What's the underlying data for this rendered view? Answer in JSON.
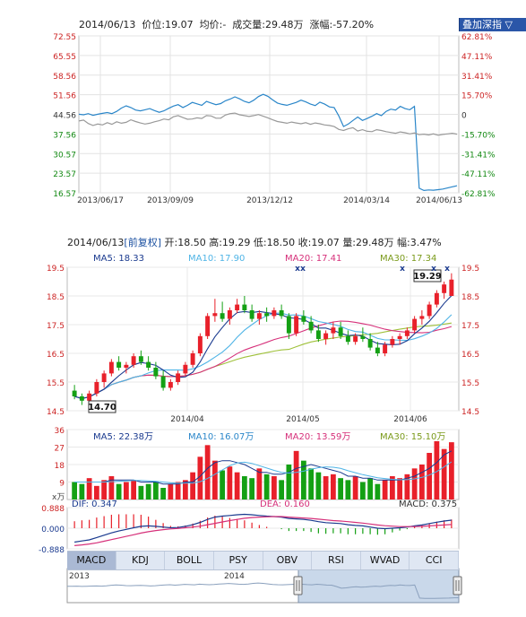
{
  "top_header": {
    "date": "2014/06/13",
    "price": "价位:19.07",
    "avg": "均价:-",
    "volume": "成交量:29.48万",
    "change": "涨幅:-57.20%"
  },
  "overlay_button": "叠加深指 ▽",
  "candle_header": {
    "date": "2014/06/13",
    "tag": "[前复权]",
    "open": "开:18.50",
    "high": "高:19.29",
    "low": "低:18.50",
    "close": "收:19.07",
    "volume": "量:29.48万",
    "amplitude": "幅:3.47%"
  },
  "ma_legend": {
    "ma5": "MA5: 18.33",
    "ma10": "MA10: 17.90",
    "ma20": "MA20: 17.41",
    "ma30": "MA30: 17.34"
  },
  "vol_legend": {
    "ma5": "MA5: 22.38万",
    "ma10": "MA10: 16.07万",
    "ma20": "MA20: 13.59万",
    "ma30": "MA30: 15.10万"
  },
  "macd_legend": {
    "dif": "DIF: 0.347",
    "dea": "DEA: 0.160",
    "macd": "MACD: 0.375"
  },
  "price_labels": {
    "high": "19.29",
    "low": "14.70"
  },
  "vol_unit": "x万",
  "tabs": [
    "MACD",
    "KDJ",
    "BOLL",
    "PSY",
    "OBV",
    "RSI",
    "WVAD",
    "CCI"
  ],
  "active_tab": "MACD",
  "navigator": {
    "label_left": "2013",
    "label_mid": "2014"
  },
  "colors": {
    "up": "#e8202a",
    "down": "#14a014",
    "line1": "#2a86c9",
    "line2": "#999999",
    "ma5": "#1a3a8f",
    "ma10": "#4fb4e6",
    "ma20": "#d6307a",
    "ma30": "#9fc13a",
    "axis_up": "#cc2222",
    "axis_down": "#118811"
  },
  "chart_data": [
    {
      "type": "line",
      "y_left_ticks": [
        "72.55",
        "65.55",
        "58.56",
        "51.56",
        "44.56",
        "37.56",
        "30.57",
        "23.57",
        "16.57"
      ],
      "y_right_ticks": [
        "62.81%",
        "47.11%",
        "31.41%",
        "15.70%",
        "0",
        "-15.70%",
        "-31.41%",
        "-47.11%",
        "-62.81%"
      ],
      "x_ticks": [
        "2013/06/17",
        "2013/09/09",
        "2013/12/12",
        "2014/03/14",
        "2014/06/13"
      ],
      "ylim": [
        16.57,
        72.55
      ],
      "series": [
        {
          "color": "#2a86c9",
          "values": [
            44.6,
            44.4,
            44.8,
            44.2,
            44.6,
            44.9,
            45.2,
            44.8,
            45.6,
            46.8,
            47.6,
            47.0,
            46.1,
            45.8,
            46.2,
            46.6,
            45.9,
            45.3,
            45.8,
            46.7,
            47.5,
            48.0,
            47.0,
            47.8,
            48.8,
            48.3,
            47.8,
            49.2,
            48.6,
            48.0,
            48.4,
            49.4,
            50.0,
            50.8,
            50.1,
            49.2,
            48.7,
            49.6,
            50.9,
            51.7,
            51.0,
            49.7,
            48.6,
            48.1,
            47.8,
            48.3,
            48.8,
            49.6,
            49.0,
            48.2,
            47.7,
            48.9,
            48.2,
            47.2,
            47.0,
            44.0,
            40.2,
            41.1,
            42.4,
            43.6,
            42.4,
            43.1,
            43.9,
            44.8,
            44.1,
            45.6,
            46.4,
            46.1,
            47.4,
            46.6,
            46.2,
            47.4,
            18.2,
            17.4,
            17.6,
            17.5,
            17.7,
            17.9,
            18.3,
            18.7,
            19.1
          ]
        },
        {
          "color": "#999999",
          "values": [
            42.2,
            42.5,
            41.3,
            40.6,
            41.1,
            40.8,
            41.6,
            41.0,
            41.9,
            41.4,
            41.7,
            42.6,
            42.0,
            41.5,
            41.1,
            41.4,
            41.9,
            42.3,
            42.9,
            42.6,
            43.7,
            44.1,
            43.4,
            42.8,
            42.9,
            43.3,
            43.1,
            44.1,
            44.0,
            43.2,
            43.2,
            44.3,
            44.8,
            45.0,
            44.4,
            44.1,
            43.8,
            44.1,
            44.5,
            43.9,
            43.3,
            42.6,
            42.0,
            41.7,
            41.4,
            41.8,
            41.5,
            41.2,
            41.6,
            41.0,
            41.5,
            41.2,
            40.8,
            40.6,
            40.2,
            39.2,
            38.8,
            39.4,
            39.8,
            38.6,
            39.1,
            38.5,
            38.4,
            39.1,
            38.8,
            38.4,
            38.1,
            37.8,
            38.3,
            38.0,
            37.6,
            37.9,
            37.3,
            37.5,
            37.2,
            37.6,
            37.1,
            37.4,
            37.6,
            37.8,
            37.5
          ]
        }
      ]
    },
    {
      "type": "candlestick",
      "y_ticks": [
        "19.5",
        "18.5",
        "17.5",
        "16.5",
        "15.5",
        "14.5"
      ],
      "ylim": [
        14.5,
        19.5
      ],
      "x_ticks": [
        "2014/04",
        "2014/05",
        "2014/06"
      ],
      "ohlc": [
        [
          15.2,
          15.4,
          14.9,
          15.0
        ],
        [
          15.0,
          15.1,
          14.7,
          14.85
        ],
        [
          14.85,
          15.2,
          14.8,
          15.1
        ],
        [
          15.1,
          15.6,
          15.0,
          15.5
        ],
        [
          15.5,
          15.9,
          15.3,
          15.8
        ],
        [
          15.8,
          16.3,
          15.7,
          16.2
        ],
        [
          16.2,
          16.4,
          15.9,
          16.0
        ],
        [
          16.0,
          16.2,
          15.8,
          16.1
        ],
        [
          16.1,
          16.5,
          16.0,
          16.4
        ],
        [
          16.4,
          16.6,
          16.1,
          16.2
        ],
        [
          16.2,
          16.4,
          15.9,
          16.0
        ],
        [
          16.0,
          16.2,
          15.6,
          15.7
        ],
        [
          15.7,
          15.9,
          15.2,
          15.3
        ],
        [
          15.3,
          15.6,
          15.2,
          15.5
        ],
        [
          15.5,
          15.9,
          15.4,
          15.8
        ],
        [
          15.8,
          16.2,
          15.7,
          16.1
        ],
        [
          16.1,
          16.6,
          16.0,
          16.5
        ],
        [
          16.5,
          17.2,
          16.4,
          17.1
        ],
        [
          17.1,
          17.9,
          17.0,
          17.8
        ],
        [
          17.8,
          18.4,
          17.6,
          17.9
        ],
        [
          17.9,
          18.3,
          17.6,
          17.7
        ],
        [
          17.7,
          18.1,
          17.5,
          18.0
        ],
        [
          18.0,
          18.4,
          17.9,
          18.2
        ],
        [
          18.2,
          18.5,
          17.9,
          18.0
        ],
        [
          18.0,
          18.2,
          17.6,
          17.7
        ],
        [
          17.7,
          18.0,
          17.5,
          17.9
        ],
        [
          17.9,
          18.1,
          17.6,
          17.8
        ],
        [
          17.8,
          18.1,
          17.7,
          18.0
        ],
        [
          18.0,
          18.2,
          17.7,
          17.8
        ],
        [
          17.8,
          17.9,
          17.0,
          17.2
        ],
        [
          17.2,
          17.9,
          17.1,
          17.8
        ],
        [
          17.8,
          18.0,
          17.5,
          17.6
        ],
        [
          17.6,
          17.8,
          17.2,
          17.3
        ],
        [
          17.3,
          17.5,
          16.9,
          17.0
        ],
        [
          17.0,
          17.3,
          16.8,
          17.2
        ],
        [
          17.2,
          17.6,
          17.0,
          17.4
        ],
        [
          17.4,
          17.6,
          17.0,
          17.1
        ],
        [
          17.1,
          17.3,
          16.8,
          16.9
        ],
        [
          16.9,
          17.2,
          16.8,
          17.1
        ],
        [
          17.1,
          17.4,
          16.9,
          17.0
        ],
        [
          17.0,
          17.2,
          16.6,
          16.7
        ],
        [
          16.7,
          16.9,
          16.4,
          16.5
        ],
        [
          16.5,
          16.9,
          16.4,
          16.8
        ],
        [
          16.8,
          17.1,
          16.7,
          17.0
        ],
        [
          17.0,
          17.2,
          16.8,
          17.1
        ],
        [
          17.1,
          17.4,
          17.0,
          17.3
        ],
        [
          17.3,
          17.8,
          17.2,
          17.7
        ],
        [
          17.7,
          18.0,
          17.5,
          17.8
        ],
        [
          17.8,
          18.3,
          17.7,
          18.2
        ],
        [
          18.2,
          18.7,
          18.1,
          18.6
        ],
        [
          18.6,
          19.0,
          18.4,
          18.9
        ],
        [
          18.5,
          19.29,
          18.5,
          19.07
        ]
      ]
    },
    {
      "type": "bar",
      "y_ticks": [
        "36",
        "27",
        "18",
        "9"
      ],
      "ylim": [
        0,
        36
      ],
      "values_wan": [
        9,
        8,
        11,
        7,
        10,
        12,
        8,
        9,
        10,
        7,
        8,
        9,
        6,
        8,
        9,
        10,
        14,
        22,
        28,
        20,
        15,
        17,
        14,
        12,
        11,
        16,
        13,
        12,
        10,
        18,
        25,
        20,
        16,
        14,
        12,
        13,
        11,
        10,
        12,
        9,
        11,
        8,
        10,
        12,
        11,
        13,
        16,
        18,
        24,
        30,
        26,
        29.48
      ],
      "ma5": [
        9,
        9,
        9,
        9,
        9,
        10,
        10,
        10,
        10,
        9,
        9,
        9,
        8,
        8,
        8,
        9,
        9,
        12,
        16,
        19,
        20,
        20,
        19,
        18,
        16,
        14,
        14,
        13,
        13,
        14,
        16,
        17,
        18,
        17,
        16,
        15,
        14,
        12,
        12,
        11,
        11,
        10,
        10,
        10,
        10,
        11,
        12,
        14,
        16,
        19,
        23,
        25
      ]
    },
    {
      "type": "line",
      "title": "MACD",
      "y_ticks": [
        "0.888",
        "0.000",
        "-0.888"
      ],
      "ylim": [
        -0.888,
        0.888
      ],
      "dif": [
        -0.6,
        -0.55,
        -0.5,
        -0.4,
        -0.3,
        -0.2,
        -0.12,
        -0.05,
        0.02,
        0.08,
        0.1,
        0.08,
        0.05,
        0.02,
        0.03,
        0.08,
        0.15,
        0.25,
        0.38,
        0.48,
        0.52,
        0.55,
        0.58,
        0.6,
        0.58,
        0.55,
        0.52,
        0.5,
        0.48,
        0.42,
        0.4,
        0.38,
        0.34,
        0.28,
        0.24,
        0.22,
        0.2,
        0.15,
        0.12,
        0.1,
        0.05,
        0.0,
        -0.02,
        0.0,
        0.02,
        0.05,
        0.1,
        0.14,
        0.2,
        0.26,
        0.31,
        0.347
      ],
      "dea": [
        -0.75,
        -0.72,
        -0.68,
        -0.63,
        -0.56,
        -0.49,
        -0.42,
        -0.35,
        -0.28,
        -0.21,
        -0.15,
        -0.1,
        -0.06,
        -0.03,
        -0.01,
        0.02,
        0.05,
        0.09,
        0.15,
        0.21,
        0.27,
        0.33,
        0.38,
        0.43,
        0.46,
        0.48,
        0.49,
        0.5,
        0.5,
        0.48,
        0.46,
        0.44,
        0.42,
        0.39,
        0.36,
        0.33,
        0.31,
        0.28,
        0.25,
        0.22,
        0.18,
        0.14,
        0.11,
        0.09,
        0.07,
        0.07,
        0.07,
        0.08,
        0.1,
        0.12,
        0.14,
        0.16
      ]
    }
  ]
}
